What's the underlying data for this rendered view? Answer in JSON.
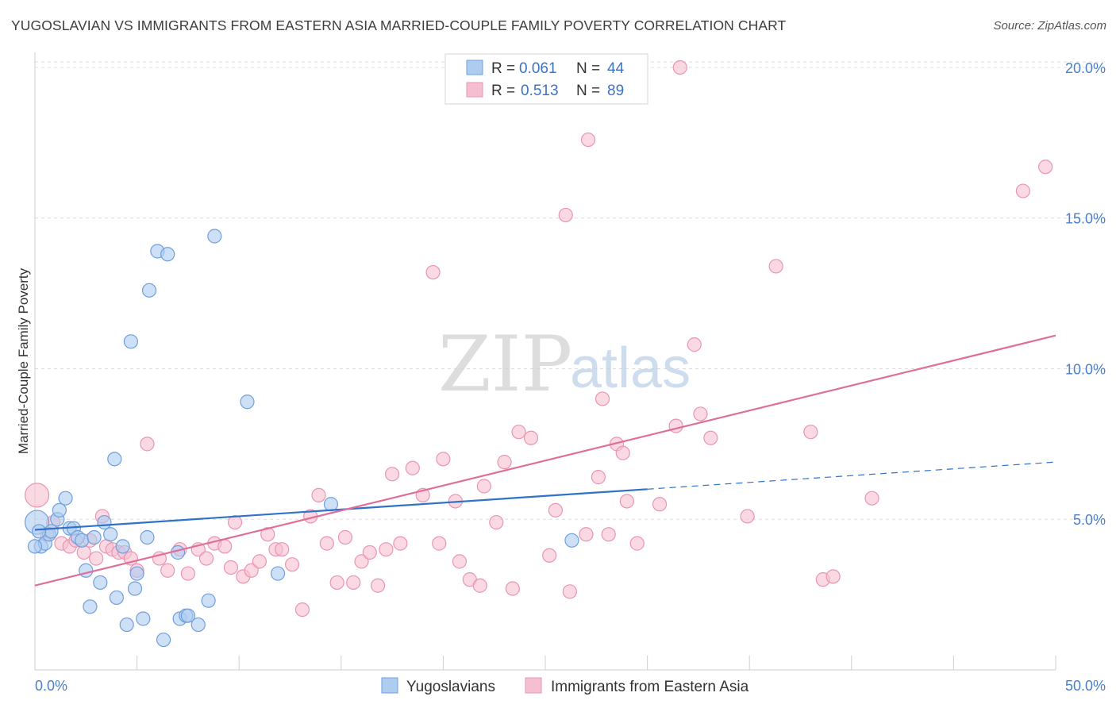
{
  "title": "YUGOSLAVIAN VS IMMIGRANTS FROM EASTERN ASIA MARRIED-COUPLE FAMILY POVERTY CORRELATION CHART",
  "source": "Source: ZipAtlas.com",
  "watermark": {
    "zip": "ZIP",
    "atlas": "atlas"
  },
  "colors": {
    "blue_fill": "#aecbf0",
    "blue_stroke": "#6f9fdc",
    "blue_line": "#2e72c9",
    "pink_fill": "#f6bfd1",
    "pink_stroke": "#e995b2",
    "pink_line": "#e06f98",
    "grid": "#dcdcdc",
    "tick_text": "#4a7fc7"
  },
  "chart_data": {
    "type": "scatter",
    "ylabel": "Married-Couple Family Poverty",
    "xlabel": "",
    "xlim": [
      0,
      50
    ],
    "ylim": [
      0,
      20.5
    ],
    "x_tick_labels": [
      {
        "value": 0,
        "label": "0.0%"
      },
      {
        "value": 50,
        "label": "50.0%"
      }
    ],
    "y_tick_labels": [
      {
        "value": 5,
        "label": "5.0%"
      },
      {
        "value": 10,
        "label": "10.0%"
      },
      {
        "value": 15,
        "label": "15.0%"
      },
      {
        "value": 20,
        "label": "20.0%"
      }
    ],
    "legend": [
      {
        "series": "Yugoslavians",
        "r_label": "R =",
        "r_value": "0.061",
        "n_label": "N =",
        "n_value": "44"
      },
      {
        "series": "Immigrants from Eastern Asia",
        "r_label": "R =",
        "r_value": "0.513",
        "n_label": "N =",
        "n_value": "89"
      }
    ],
    "series": [
      {
        "name": "Yugoslavians",
        "color": "blue",
        "points": [
          [
            0.1,
            4.9
          ],
          [
            0.3,
            4.1
          ],
          [
            0.5,
            4.2
          ],
          [
            0.7,
            4.5
          ],
          [
            0.8,
            4.6
          ],
          [
            1.1,
            5.0
          ],
          [
            1.2,
            5.3
          ],
          [
            1.5,
            5.7
          ],
          [
            1.7,
            4.7
          ],
          [
            1.9,
            4.7
          ],
          [
            2.1,
            4.4
          ],
          [
            2.3,
            4.3
          ],
          [
            2.5,
            3.3
          ],
          [
            2.7,
            2.1
          ],
          [
            2.9,
            4.4
          ],
          [
            3.2,
            2.9
          ],
          [
            3.4,
            4.9
          ],
          [
            3.7,
            4.5
          ],
          [
            3.9,
            7.0
          ],
          [
            4.0,
            2.4
          ],
          [
            4.3,
            4.1
          ],
          [
            4.5,
            1.5
          ],
          [
            4.7,
            10.9
          ],
          [
            4.9,
            2.7
          ],
          [
            5.0,
            3.2
          ],
          [
            5.3,
            1.7
          ],
          [
            5.5,
            4.4
          ],
          [
            5.6,
            12.6
          ],
          [
            6.0,
            13.9
          ],
          [
            6.3,
            1.0
          ],
          [
            6.5,
            13.8
          ],
          [
            7.0,
            3.9
          ],
          [
            7.1,
            1.7
          ],
          [
            7.4,
            1.8
          ],
          [
            7.5,
            1.8
          ],
          [
            8.0,
            1.5
          ],
          [
            8.5,
            2.3
          ],
          [
            8.8,
            14.4
          ],
          [
            10.4,
            8.9
          ],
          [
            11.9,
            3.2
          ],
          [
            14.5,
            5.5
          ],
          [
            26.3,
            4.3
          ],
          [
            0.0,
            4.1
          ],
          [
            0.2,
            4.6
          ]
        ],
        "trend": {
          "x0": 0,
          "y0": 4.65,
          "x1": 30,
          "y1": 6.0,
          "x_dash_end": 50,
          "y_dash_end": 6.9
        }
      },
      {
        "name": "Immigrants from Eastern Asia",
        "color": "pink",
        "points": [
          [
            0.1,
            5.8
          ],
          [
            0.6,
            4.5
          ],
          [
            0.9,
            4.9
          ],
          [
            1.3,
            4.2
          ],
          [
            1.7,
            4.1
          ],
          [
            2.0,
            4.3
          ],
          [
            2.4,
            3.9
          ],
          [
            2.7,
            4.3
          ],
          [
            3.0,
            3.7
          ],
          [
            3.3,
            5.1
          ],
          [
            3.5,
            4.1
          ],
          [
            3.8,
            4.0
          ],
          [
            4.1,
            3.9
          ],
          [
            4.4,
            3.9
          ],
          [
            4.7,
            3.7
          ],
          [
            5.0,
            3.3
          ],
          [
            5.5,
            7.5
          ],
          [
            6.1,
            3.7
          ],
          [
            6.5,
            3.3
          ],
          [
            7.1,
            4.0
          ],
          [
            7.5,
            3.2
          ],
          [
            8.0,
            4.0
          ],
          [
            8.4,
            3.7
          ],
          [
            8.8,
            4.2
          ],
          [
            9.3,
            4.1
          ],
          [
            9.6,
            3.4
          ],
          [
            9.8,
            4.9
          ],
          [
            10.2,
            3.1
          ],
          [
            10.6,
            3.3
          ],
          [
            11.0,
            3.6
          ],
          [
            11.4,
            4.5
          ],
          [
            11.8,
            4.0
          ],
          [
            12.1,
            4.0
          ],
          [
            12.6,
            3.5
          ],
          [
            13.1,
            2.0
          ],
          [
            13.5,
            5.1
          ],
          [
            13.9,
            5.8
          ],
          [
            14.3,
            4.2
          ],
          [
            14.8,
            2.9
          ],
          [
            15.2,
            4.4
          ],
          [
            15.6,
            2.9
          ],
          [
            16.0,
            3.6
          ],
          [
            16.4,
            3.9
          ],
          [
            16.8,
            2.8
          ],
          [
            17.2,
            4.0
          ],
          [
            17.5,
            6.5
          ],
          [
            17.9,
            4.2
          ],
          [
            18.5,
            6.7
          ],
          [
            19.0,
            5.8
          ],
          [
            19.5,
            13.2
          ],
          [
            19.8,
            4.2
          ],
          [
            20.0,
            7.0
          ],
          [
            20.6,
            5.6
          ],
          [
            20.8,
            3.6
          ],
          [
            21.3,
            3.0
          ],
          [
            21.8,
            2.8
          ],
          [
            22.0,
            6.1
          ],
          [
            22.6,
            4.9
          ],
          [
            23.0,
            6.9
          ],
          [
            23.4,
            2.7
          ],
          [
            23.7,
            7.9
          ],
          [
            24.3,
            7.7
          ],
          [
            25.2,
            3.8
          ],
          [
            25.5,
            5.3
          ],
          [
            26.0,
            15.1
          ],
          [
            26.2,
            2.6
          ],
          [
            27.0,
            4.5
          ],
          [
            27.1,
            17.6
          ],
          [
            27.6,
            6.4
          ],
          [
            28.1,
            4.5
          ],
          [
            28.5,
            7.5
          ],
          [
            28.8,
            7.2
          ],
          [
            29.0,
            5.6
          ],
          [
            29.5,
            4.2
          ],
          [
            30.6,
            5.5
          ],
          [
            31.4,
            8.1
          ],
          [
            31.6,
            20.0
          ],
          [
            32.3,
            10.8
          ],
          [
            32.6,
            8.5
          ],
          [
            33.1,
            7.7
          ],
          [
            34.9,
            5.1
          ],
          [
            36.3,
            13.4
          ],
          [
            38.0,
            7.9
          ],
          [
            38.6,
            3.0
          ],
          [
            39.1,
            3.1
          ],
          [
            41.0,
            5.7
          ],
          [
            48.4,
            15.9
          ],
          [
            49.5,
            16.7
          ],
          [
            27.8,
            9.0
          ]
        ],
        "trend": {
          "x0": 0,
          "y0": 2.8,
          "x1": 50,
          "y1": 11.1
        }
      }
    ]
  }
}
